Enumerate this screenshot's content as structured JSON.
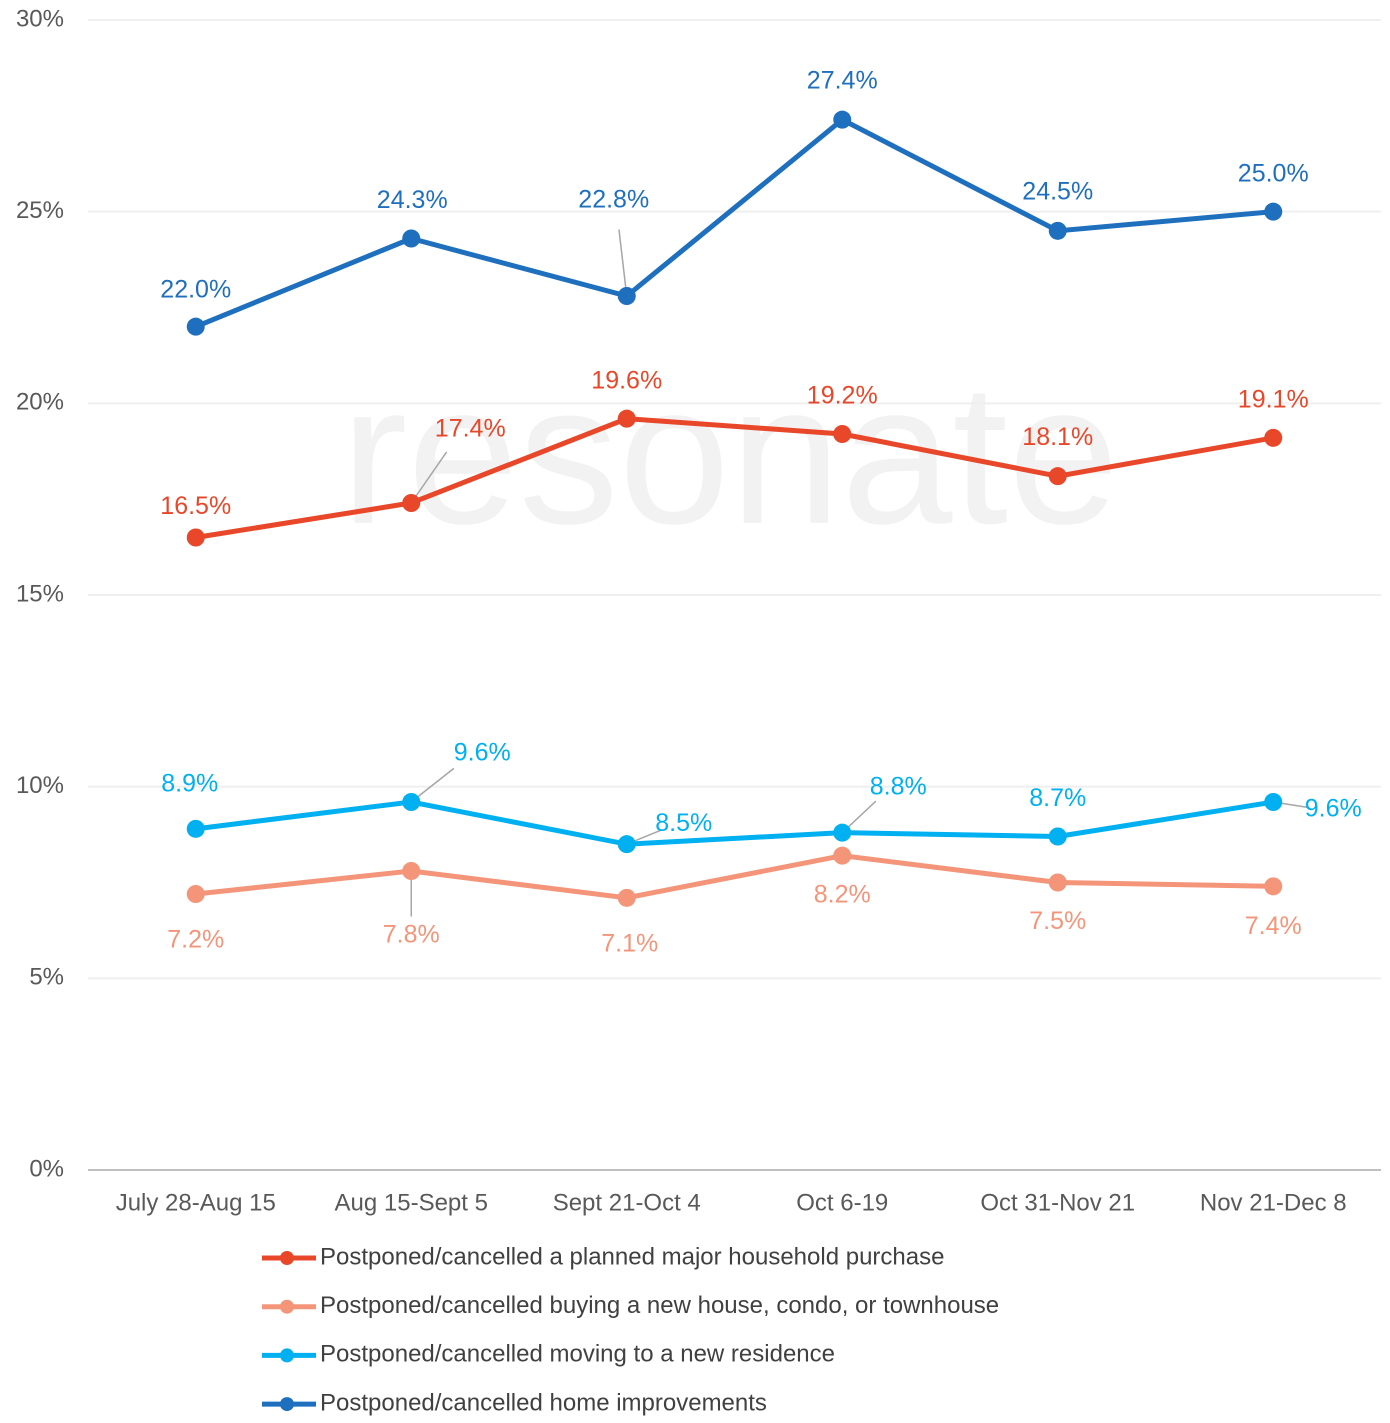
{
  "chart_data": {
    "type": "line",
    "watermark": "resonate",
    "categories": [
      "July 28-Aug 15",
      "Aug 15-Sept 5",
      "Sept 21-Oct 4",
      "Oct 6-19",
      "Oct 31-Nov 21",
      "Nov 21-Dec 8"
    ],
    "ylim": [
      0,
      30
    ],
    "yticks": [
      {
        "value": 0,
        "label": "0%"
      },
      {
        "value": 5,
        "label": "5%"
      },
      {
        "value": 10,
        "label": "10%"
      },
      {
        "value": 15,
        "label": "15%"
      },
      {
        "value": 20,
        "label": "20%"
      },
      {
        "value": 25,
        "label": "25%"
      },
      {
        "value": 30,
        "label": "30%"
      }
    ],
    "grid": true,
    "legend": "bottom",
    "series": [
      {
        "name": "Postponed/cancelled a planned major household purchase",
        "color": "#e8472a",
        "values": [
          16.5,
          17.4,
          19.6,
          19.2,
          18.1,
          19.1
        ],
        "value_labels": [
          "16.5%",
          "17.4%",
          "19.6%",
          "19.2%",
          "18.1%",
          "19.1%"
        ]
      },
      {
        "name": "Postponed/cancelled buying a new house, condo, or townhouse",
        "color": "#f4957a",
        "values": [
          7.2,
          7.8,
          7.1,
          8.2,
          7.5,
          7.4
        ],
        "value_labels": [
          "7.2%",
          "7.8%",
          "7.1%",
          "8.2%",
          "7.5%",
          "7.4%"
        ]
      },
      {
        "name": "Postponed/cancelled moving to a new residence",
        "color": "#00b0f0",
        "values": [
          8.9,
          9.6,
          8.5,
          8.8,
          8.7,
          9.6
        ],
        "value_labels": [
          "8.9%",
          "9.6%",
          "8.5%",
          "8.8%",
          "8.7%",
          "9.6%"
        ]
      },
      {
        "name": "Postponed/cancelled home improvements",
        "color": "#1f6fbf",
        "values": [
          22.0,
          24.3,
          22.8,
          27.4,
          24.5,
          25.0
        ],
        "value_labels": [
          "22.0%",
          "24.3%",
          "22.8%",
          "27.4%",
          "24.5%",
          "25.0%"
        ]
      }
    ]
  }
}
